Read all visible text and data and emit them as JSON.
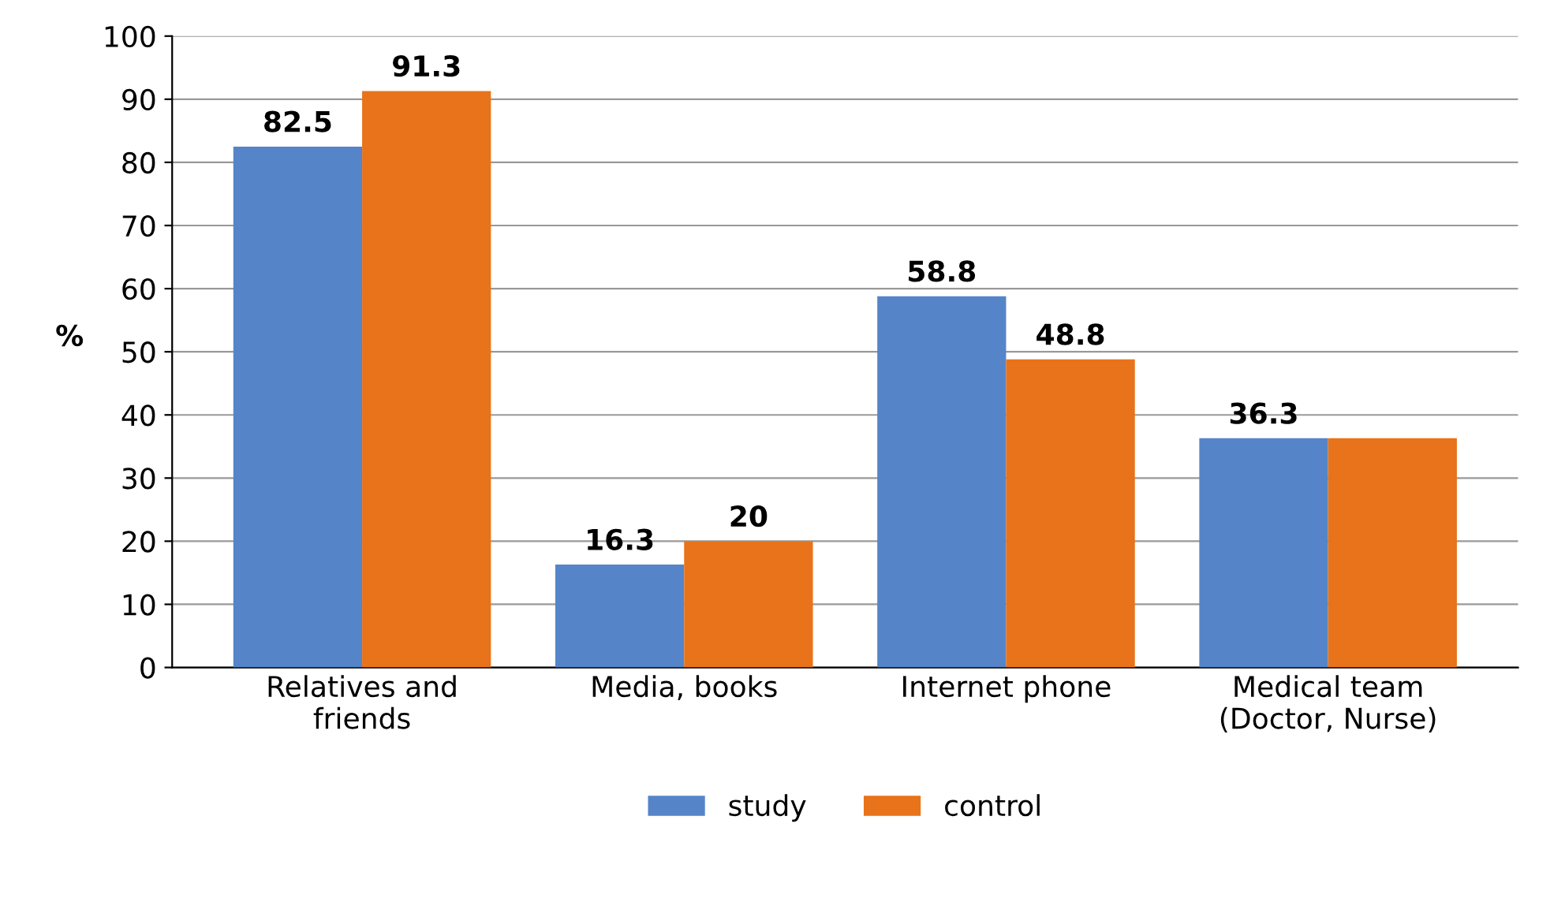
{
  "chart_data": {
    "type": "bar",
    "ylabel": "%",
    "categories": [
      "Relatives and\nfriends",
      "Media, books",
      "Internet phone",
      "Medical team\n(Doctor, Nurse)"
    ],
    "series": [
      {
        "name": "study",
        "color": "#5585c8",
        "values": [
          82.5,
          16.3,
          58.8,
          36.3
        ],
        "value_labels": [
          "82.5",
          "16.3",
          "58.8",
          "36.3"
        ]
      },
      {
        "name": "control",
        "color": "#e8731a",
        "values": [
          91.3,
          20,
          48.8,
          36.3
        ],
        "value_labels": [
          "91.3",
          "20",
          "48.8",
          null
        ]
      }
    ],
    "ylim": [
      0,
      100
    ],
    "yticks": [
      0,
      10,
      20,
      30,
      40,
      50,
      60,
      70,
      80,
      90,
      100
    ],
    "grid": "y",
    "legend": "bottom"
  }
}
